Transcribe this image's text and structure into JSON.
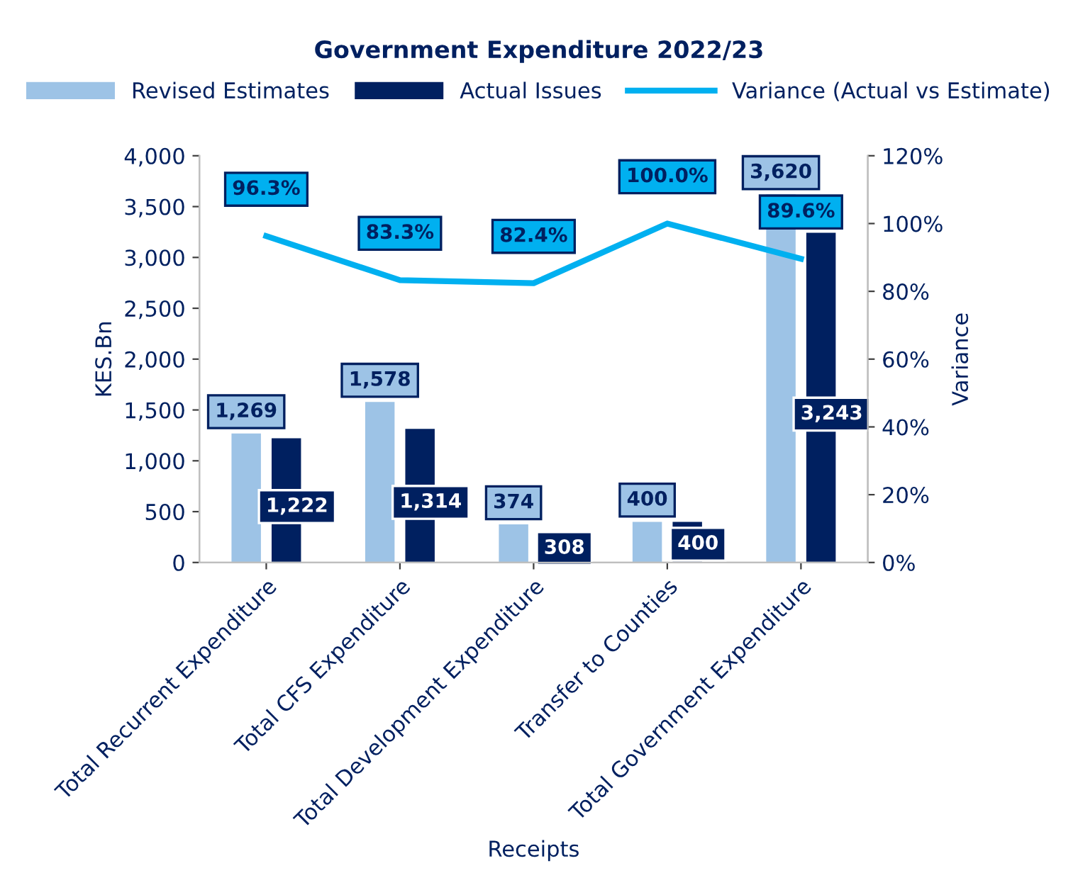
{
  "chart_data": {
    "type": "bar",
    "title": "Government Expenditure 2022/23",
    "xlabel": "Receipts",
    "ylabel": "KES.Bn",
    "y2label": "Variance",
    "categories": [
      "Total Recurrent Expenditure",
      "Total CFS Expenditure",
      "Total Development Expenditure",
      "Transfer to Counties",
      "Total Government Expenditure"
    ],
    "series": [
      {
        "name": "Revised Estimates",
        "color": "#9dc3e6",
        "values": [
          1269,
          1578,
          374,
          400,
          3620
        ],
        "value_labels": [
          "1,269",
          "1,578",
          "374",
          "400",
          "3,620"
        ]
      },
      {
        "name": "Actual Issues",
        "color": "#002060",
        "values": [
          1222,
          1314,
          308,
          400,
          3243
        ],
        "value_labels": [
          "1,222",
          "1,314",
          "308",
          "400",
          "3,243"
        ]
      },
      {
        "name": "Variance (Actual vs Estimate)",
        "type": "line",
        "axis": "y2",
        "color": "#00b0f0",
        "values": [
          96.3,
          83.3,
          82.4,
          100.0,
          89.6
        ],
        "value_labels": [
          "96.3%",
          "83.3%",
          "82.4%",
          "100.0%",
          "89.6%"
        ]
      }
    ],
    "ylim": [
      0,
      4000
    ],
    "yticks": [
      0,
      {
        "value": 500,
        "label": "500"
      },
      {
        "value": 1000,
        "label": "1,000"
      },
      {
        "value": 1500,
        "label": "1,500"
      },
      {
        "value": 2000,
        "label": "2,000"
      },
      {
        "value": 2500,
        "label": "2,500"
      },
      {
        "value": 3000,
        "label": "3,000"
      },
      {
        "value": 3500,
        "label": "3,500"
      },
      {
        "value": 4000,
        "label": "4,000"
      }
    ],
    "y2lim": [
      0,
      120
    ],
    "y2ticks": [
      {
        "value": 0,
        "label": "0%"
      },
      {
        "value": 20,
        "label": "20%"
      },
      {
        "value": 40,
        "label": "40%"
      },
      {
        "value": 60,
        "label": "60%"
      },
      {
        "value": 80,
        "label": "80%"
      },
      {
        "value": 100,
        "label": "100%"
      },
      {
        "value": 120,
        "label": "120%"
      }
    ],
    "grid": false,
    "legend": "top",
    "marker": "none",
    "line_style": "solid"
  }
}
